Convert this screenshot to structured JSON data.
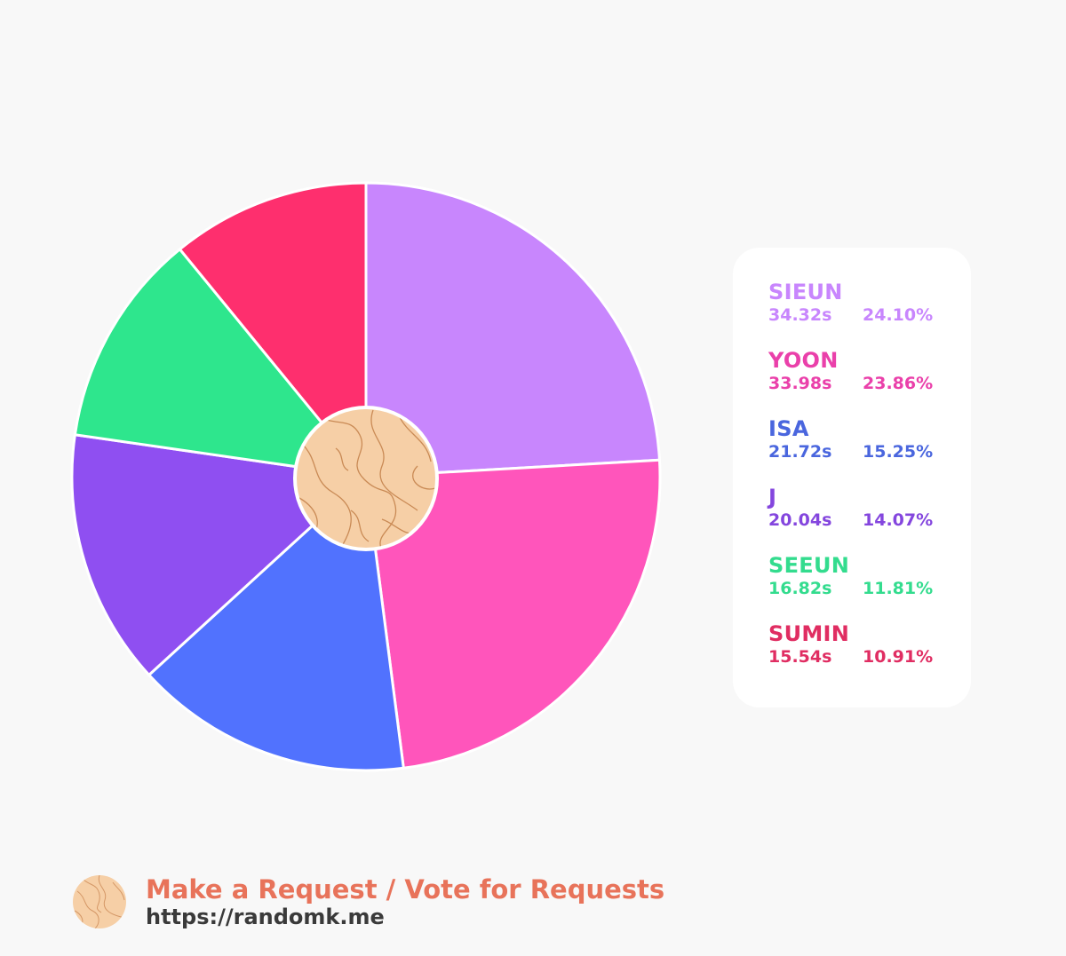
{
  "chart_data": {
    "type": "pie",
    "categories": [
      "SIEUN",
      "YOON",
      "ISA",
      "J",
      "SEEUN",
      "SUMIN"
    ],
    "values": [
      24.1,
      23.86,
      15.25,
      14.07,
      11.81,
      10.91
    ],
    "series": [
      {
        "name": "SIEUN",
        "seconds": "34.32s",
        "percent": "24.10%",
        "value": 24.1,
        "color": "#c886fd"
      },
      {
        "name": "YOON",
        "seconds": "33.98s",
        "percent": "23.86%",
        "value": 23.86,
        "color": "#ff55bb"
      },
      {
        "name": "ISA",
        "seconds": "21.72s",
        "percent": "15.25%",
        "value": 15.25,
        "color": "#5172fe"
      },
      {
        "name": "J",
        "seconds": "20.04s",
        "percent": "14.07%",
        "value": 14.07,
        "color": "#8f4ff1"
      },
      {
        "name": "SEEUN",
        "seconds": "16.82s",
        "percent": "11.81%",
        "value": 11.81,
        "color": "#2ee68d"
      },
      {
        "name": "SUMIN",
        "seconds": "15.54s",
        "percent": "10.91%",
        "value": 10.91,
        "color": "#fe2f6e"
      }
    ],
    "legend_colors": [
      "#c886fd",
      "#ea40aa",
      "#4a66de",
      "#8446de",
      "#33dc8e",
      "#e02d62"
    ],
    "legend": "right"
  },
  "footer": {
    "title": "Make a Request / Vote for Requests",
    "url": "https://randomk.me",
    "logo_icon": "map-pattern-icon"
  }
}
